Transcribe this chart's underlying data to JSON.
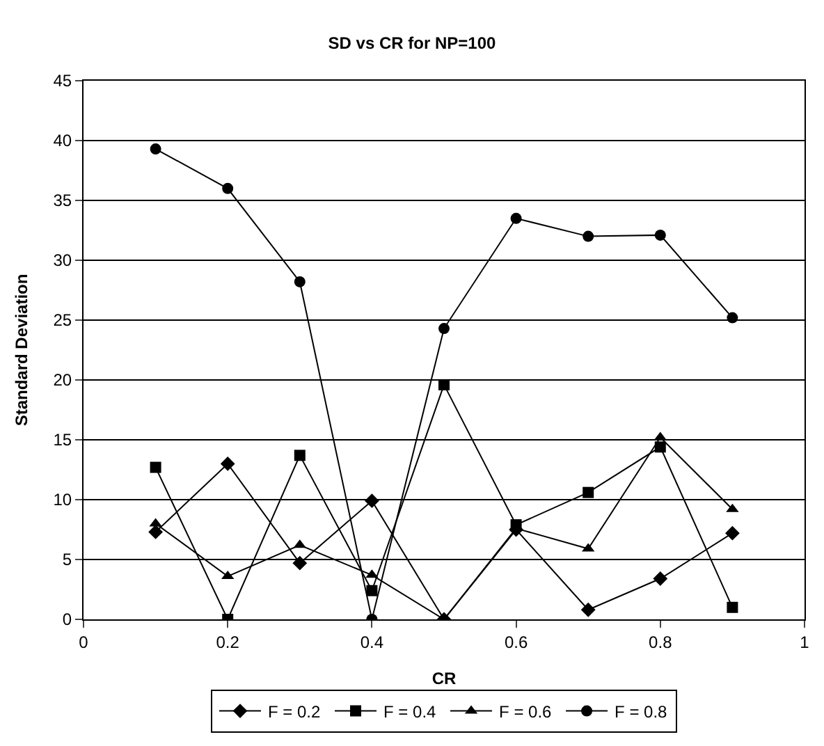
{
  "chart_data": {
    "type": "line",
    "title": "SD vs CR for NP=100",
    "xlabel": "CR",
    "ylabel": "Standard Deviation",
    "x": [
      0.1,
      0.2,
      0.3,
      0.4,
      0.5,
      0.6,
      0.7,
      0.8,
      0.9
    ],
    "series": [
      {
        "name": "F = 0.2",
        "color": "#000000",
        "marker": "diamond",
        "values": [
          7.3,
          13.0,
          4.7,
          9.9,
          0,
          7.5,
          0.8,
          3.4,
          7.2
        ]
      },
      {
        "name": "F = 0.4",
        "color": "#000000",
        "marker": "square",
        "values": [
          12.7,
          0,
          13.7,
          2.4,
          19.6,
          7.9,
          10.6,
          14.4,
          1.0
        ]
      },
      {
        "name": "F = 0.6",
        "color": "#000000",
        "marker": "triangle",
        "values": [
          8.0,
          3.6,
          6.2,
          3.7,
          0,
          7.6,
          5.9,
          15.2,
          9.2
        ]
      },
      {
        "name": "F = 0.8",
        "color": "#000000",
        "marker": "circle",
        "values": [
          39.3,
          36.0,
          28.2,
          0,
          24.3,
          33.5,
          32.0,
          32.1,
          25.2
        ]
      }
    ],
    "xlim": [
      0,
      1
    ],
    "xticks": [
      0,
      0.2,
      0.4,
      0.6,
      0.8,
      1
    ],
    "ylim": [
      0,
      45
    ],
    "yticks": [
      0,
      5,
      10,
      15,
      20,
      25,
      30,
      35,
      40,
      45
    ],
    "grid": "y",
    "legend": "bottom",
    "line_style": "solid"
  }
}
